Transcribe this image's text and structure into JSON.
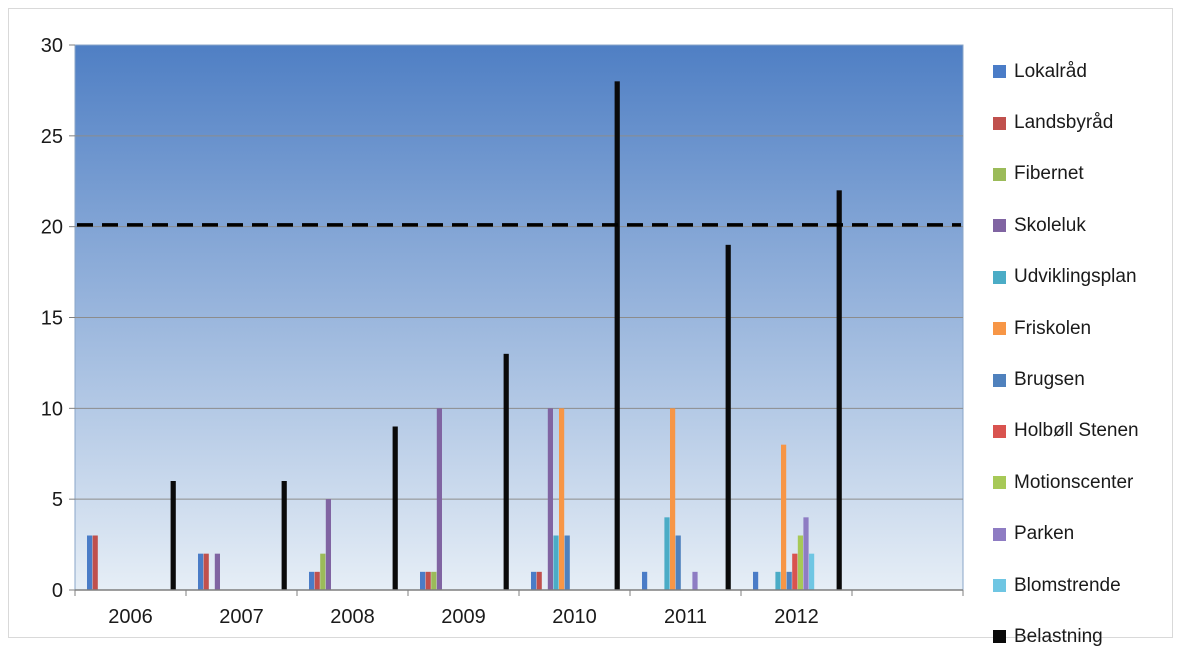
{
  "chart_data": {
    "type": "bar",
    "categories": [
      "2006",
      "2007",
      "2008",
      "2009",
      "2010",
      "2011",
      "2012",
      ""
    ],
    "ylim": [
      0,
      30
    ],
    "yticks": [
      0,
      5,
      10,
      15,
      20,
      25,
      30
    ],
    "grid": true,
    "legend_position": "right",
    "reference_line": {
      "value": 20.1,
      "style": "dashed",
      "color": "#000000"
    },
    "background": {
      "top": "#4f7fc4",
      "bottom": "#e6eef6"
    },
    "series": [
      {
        "name": "Lokalråd",
        "color": "#4a7cc7",
        "values": [
          3,
          2,
          1,
          1,
          1,
          1,
          1,
          null
        ]
      },
      {
        "name": "Landsbyråd",
        "color": "#c0504d",
        "values": [
          3,
          2,
          1,
          1,
          1,
          null,
          null,
          null
        ]
      },
      {
        "name": "Fibernet",
        "color": "#9bbb59",
        "values": [
          null,
          null,
          2,
          1,
          null,
          null,
          null,
          null
        ]
      },
      {
        "name": "Skoleluk",
        "color": "#8064a2",
        "values": [
          null,
          2,
          5,
          10,
          10,
          null,
          null,
          null
        ]
      },
      {
        "name": "Udviklingsplan",
        "color": "#4bacc6",
        "values": [
          null,
          null,
          null,
          null,
          3,
          4,
          1,
          null
        ]
      },
      {
        "name": "Friskolen",
        "color": "#f79646",
        "values": [
          null,
          null,
          null,
          null,
          10,
          10,
          8,
          null
        ]
      },
      {
        "name": "Brugsen",
        "color": "#4f81bd",
        "values": [
          null,
          null,
          null,
          null,
          3,
          3,
          1,
          null
        ]
      },
      {
        "name": "Holbøll Stenen",
        "color": "#d9534f",
        "values": [
          null,
          null,
          null,
          null,
          null,
          null,
          2,
          null
        ]
      },
      {
        "name": "Motionscenter",
        "color": "#a7c957",
        "values": [
          null,
          null,
          null,
          null,
          null,
          null,
          3,
          null
        ]
      },
      {
        "name": "Parken",
        "color": "#8e7cc3",
        "values": [
          null,
          null,
          null,
          null,
          null,
          1,
          4,
          null
        ]
      },
      {
        "name": "Blomstrende",
        "color": "#6fc6e3",
        "values": [
          null,
          null,
          null,
          null,
          null,
          null,
          2,
          null
        ]
      },
      {
        "name": "Belastning",
        "color": "#0a0a0a",
        "values": [
          6,
          6,
          9,
          13,
          28,
          19,
          22,
          null
        ]
      }
    ]
  }
}
